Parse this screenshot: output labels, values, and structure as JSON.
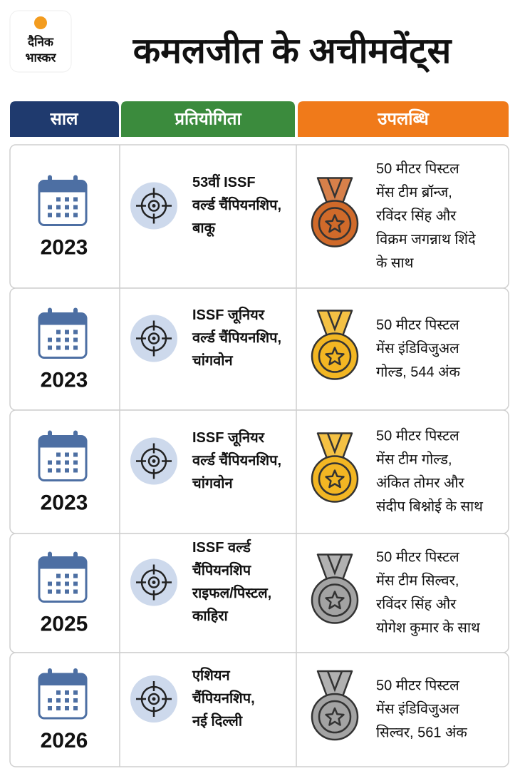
{
  "header": {
    "logo": [
      "दैनिक",
      "भास्कर"
    ],
    "title": "कमलजीत के अचीमवेंट्स"
  },
  "table": {
    "columns": [
      "साल",
      "प्रतियोगिता",
      "उपलब्धि"
    ],
    "rows": [
      {
        "year": "2023",
        "competition": [
          "53वीं ISSF",
          "वर्ल्ड चैंपियनशिप,",
          "बाकू"
        ],
        "achievement": [
          "50 मीटर पिस्टल",
          "मेंस टीम ब्रॉन्ज,",
          "रविंदर सिंह और",
          "विक्रम जगन्नाथ शिंदे",
          "के साथ"
        ],
        "medal_color": "#d06a2a"
      },
      {
        "year": "2023",
        "competition": [
          "ISSF जूनियर",
          "वर्ल्ड चैंपियनशिप,",
          "चांगवोन"
        ],
        "achievement": [
          "50 मीटर पिस्टल",
          "मेंस इंडिविजुअल",
          "गोल्ड, 544 अंक"
        ],
        "medal_color": "#f2b623"
      },
      {
        "year": "2023",
        "competition": [
          "ISSF जूनियर",
          "वर्ल्ड चैंपियनशिप,",
          "चांगवोन"
        ],
        "achievement": [
          "50 मीटर पिस्टल",
          "मेंस टीम गोल्ड,",
          "अंकित तोमर और",
          "संदीप बिश्नोई के साथ"
        ],
        "medal_color": "#f2b623"
      },
      {
        "year": "2025",
        "competition": [
          "ISSF वर्ल्ड",
          "चैंपियनशिप",
          "राइफल/पिस्टल,",
          "काहिरा"
        ],
        "achievement": [
          "50 मीटर पिस्टल",
          "मेंस टीम सिल्वर,",
          "रविंदर सिंह और",
          "योगेश कुमार के साथ"
        ],
        "medal_color": "#a3a3a3"
      },
      {
        "year": "2026",
        "competition": [
          "एशियन",
          "चैंपियनशिप,",
          "नई दिल्ली"
        ],
        "achievement": [
          "50 मीटर पिस्टल",
          "मेंस इंडिविजुअल",
          "सिल्वर, 561 अंक"
        ],
        "medal_color": "#a3a3a3"
      }
    ]
  }
}
